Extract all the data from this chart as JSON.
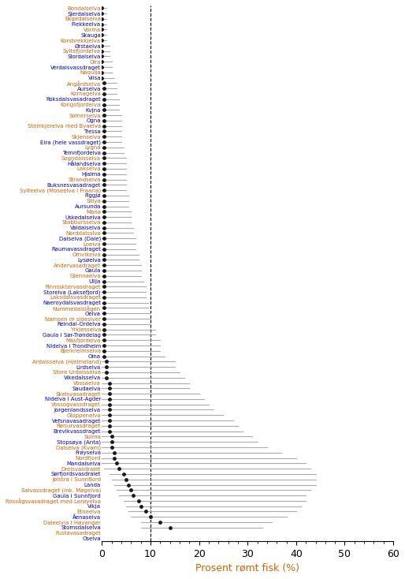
{
  "rivers": [
    "Bondalselva",
    "Sjerdalselva",
    "Ekgedalselva",
    "Flekkeelva",
    "Vorma",
    "Skauga",
    "Korsbrekkjelva",
    "Ørstaelva",
    "Syltefjordelva",
    "Slordalselva",
    "Oira",
    "Verdalsvassdraget",
    "Naqulja",
    "Viisa",
    "Angårdselva",
    "Aurselva",
    "Kornagelva",
    "Roksdalsvasadraget",
    "Kongsfjordelva",
    "Kvjna",
    "Solnerselva",
    "Ogna",
    "Steinkjerelva med Byaelva",
    "Tressa",
    "Skjenselva",
    "Eira (hele vassdraget)",
    "Lygna",
    "Temnfjordelva",
    "Sogndalsselva",
    "Hålandselva",
    "Lakselva",
    "Hjalma",
    "Strandselva",
    "Buksnesvasadraget",
    "Sylteelva (Moseelva i Fraarla)",
    "Figgjø",
    "Sillya",
    "Aursunda",
    "Mana",
    "Uskedalselva",
    "Stabbursselva",
    "Valdaiselva",
    "Norddalsslva",
    "Dalselva (Dale)",
    "Loeiva",
    "Raumavassdraget",
    "Omvikelva",
    "Lysøelva",
    "Andervasadraget",
    "Gaula",
    "Gjennaelva",
    "Ullja",
    "Finnssktervasdraget",
    "Storelva (Laksefjord)",
    "Laksdalsvasdraget",
    "Naeroydalsvasdraget",
    "Nummedalslågen",
    "Oelva",
    "Namsen m sidesiver",
    "Reindal-Ordelva",
    "Yrkjesselva",
    "Gaula i Sør-Trøndelag",
    "Masfjordelva",
    "Nidelva i Trondheim",
    "Bjerkreimselva",
    "Oina",
    "Ardalsselva (Hjelmeland)",
    "Lirdselva",
    "Store Urdalsselva",
    "Vikedalsselva",
    "Vossaelva",
    "Saudaelva",
    "Skeisvasadraget",
    "Nidelva i Aust-Agder",
    "Vossogvassdraget",
    "Jorgenlandsselva",
    "Gloppenelva",
    "Vefsnavasadraget",
    "Rørjurvasdraget",
    "Brevikvassdraget",
    "Sulma",
    "Stopsøya (Anta)",
    "Dalselva (Kvam)",
    "Frøyselva",
    "Nordfjord",
    "Mandalselva",
    "Dreisvasdraiet",
    "Sørfjordsvasdraiet",
    "Jølstra i Sunnfjord",
    "Landa",
    "Salvassdraget (ink. Møgelva)",
    "Gaula i Sunnfjord",
    "Rossågsvasadraget med Lerøyelva",
    "Vikja",
    "Etneelva",
    "Åenaseiva",
    "Daleelyia i Høyanger",
    "Stomsdalselva",
    "Fustavasadraget",
    "Oselva"
  ],
  "values": [
    0.0,
    0.0,
    0.0,
    0.0,
    0.0,
    0.0,
    0.0,
    0.0,
    0.0,
    0.0,
    0.0,
    0.0,
    0.0,
    0.0,
    0.5,
    0.5,
    0.5,
    0.5,
    0.5,
    0.5,
    0.5,
    0.5,
    0.5,
    0.5,
    0.5,
    0.5,
    0.5,
    0.5,
    0.5,
    0.5,
    0.5,
    0.5,
    0.5,
    0.5,
    0.5,
    0.5,
    0.5,
    0.5,
    0.5,
    0.5,
    0.5,
    0.5,
    0.5,
    0.5,
    0.5,
    0.5,
    0.5,
    0.5,
    0.5,
    0.5,
    0.5,
    0.5,
    0.5,
    0.5,
    0.5,
    0.5,
    0.5,
    0.5,
    0.5,
    0.5,
    0.5,
    0.5,
    0.5,
    0.5,
    0.5,
    0.5,
    1.0,
    1.0,
    1.0,
    1.0,
    1.5,
    1.5,
    1.5,
    1.5,
    1.5,
    1.5,
    1.5,
    1.5,
    1.5,
    1.5,
    2.0,
    2.0,
    2.0,
    2.5,
    2.5,
    3.0,
    3.5,
    4.5,
    5.0,
    5.5,
    6.0,
    6.5,
    7.5,
    8.0,
    9.0,
    10.0,
    12.0,
    14.0
  ],
  "ci_lower": [
    0.0,
    0.0,
    0.0,
    0.0,
    0.0,
    0.0,
    0.0,
    0.0,
    0.0,
    0.0,
    0.0,
    0.0,
    0.0,
    0.0,
    0.0,
    0.0,
    0.0,
    0.0,
    0.0,
    0.0,
    0.0,
    0.0,
    0.0,
    0.0,
    0.0,
    0.0,
    0.0,
    0.0,
    0.0,
    0.0,
    0.0,
    0.0,
    0.0,
    0.0,
    0.0,
    0.0,
    0.0,
    0.0,
    0.0,
    0.0,
    0.0,
    0.0,
    0.0,
    0.0,
    0.0,
    0.0,
    0.0,
    0.0,
    0.0,
    0.0,
    0.0,
    0.0,
    0.0,
    0.0,
    0.0,
    0.0,
    0.0,
    0.0,
    0.0,
    0.0,
    0.0,
    0.0,
    0.0,
    0.0,
    0.0,
    0.0,
    0.0,
    0.0,
    0.0,
    0.0,
    0.0,
    0.0,
    0.0,
    0.0,
    0.0,
    0.0,
    0.0,
    0.0,
    0.0,
    0.0,
    0.0,
    0.0,
    0.0,
    0.0,
    0.0,
    0.0,
    0.5,
    1.5,
    2.0,
    2.5,
    3.0,
    3.5,
    4.5,
    5.0,
    5.5,
    6.0,
    8.0,
    8.0
  ],
  "ci_upper": [
    1.0,
    1.0,
    1.0,
    1.0,
    1.0,
    1.0,
    1.0,
    1.5,
    1.5,
    1.5,
    2.0,
    2.0,
    2.0,
    2.5,
    3.0,
    3.0,
    3.0,
    3.5,
    3.5,
    3.5,
    4.0,
    4.0,
    4.0,
    4.0,
    4.0,
    4.0,
    4.5,
    4.5,
    5.0,
    5.0,
    5.0,
    5.0,
    5.0,
    5.0,
    5.0,
    5.5,
    5.5,
    5.5,
    6.0,
    6.0,
    6.0,
    6.5,
    6.5,
    7.0,
    7.0,
    7.0,
    7.5,
    7.5,
    8.0,
    8.0,
    8.0,
    8.5,
    9.0,
    9.0,
    9.0,
    9.5,
    9.5,
    10.0,
    10.0,
    10.0,
    11.0,
    11.0,
    12.0,
    12.0,
    12.0,
    13.0,
    15.0,
    15.0,
    16.0,
    17.0,
    18.0,
    18.0,
    20.0,
    21.0,
    22.0,
    23.0,
    25.0,
    27.0,
    28.0,
    29.0,
    31.0,
    32.0,
    34.0,
    37.0,
    40.0,
    42.0,
    43.0,
    44.0,
    44.0,
    44.0,
    43.0,
    42.0,
    42.0,
    41.0,
    40.0,
    38.0,
    35.0,
    33.0
  ],
  "dot_color": "#1a1a1a",
  "ci_color": "#aaaaaa",
  "label_color_odd": "#cc6600",
  "label_color_even": "#0000cc",
  "dashed_line_x": 10.0,
  "xlabel": "Prosent rømt fisk (%)",
  "xlim": [
    0,
    60
  ],
  "xticks": [
    0,
    10,
    20,
    30,
    40,
    50,
    60
  ],
  "label_fontsize": 5.0,
  "axis_fontsize": 9.0
}
